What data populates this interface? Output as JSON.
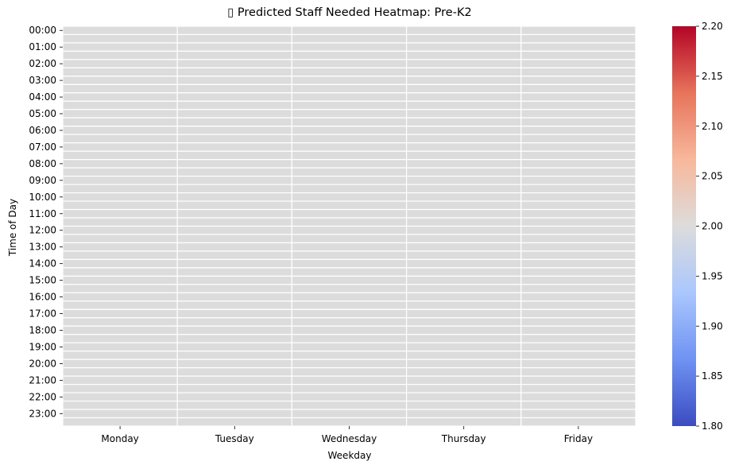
{
  "chart_data": {
    "type": "heatmap",
    "title": "▯ Predicted Staff Needed Heatmap: Pre-K2",
    "xlabel": "Weekday",
    "ylabel": "Time of Day",
    "x_categories": [
      "Monday",
      "Tuesday",
      "Wednesday",
      "Thursday",
      "Friday"
    ],
    "y_categories": [
      "00:00",
      "01:00",
      "02:00",
      "03:00",
      "04:00",
      "05:00",
      "06:00",
      "07:00",
      "08:00",
      "09:00",
      "10:00",
      "11:00",
      "12:00",
      "13:00",
      "14:00",
      "15:00",
      "16:00",
      "17:00",
      "18:00",
      "19:00",
      "20:00",
      "21:00",
      "22:00",
      "23:00"
    ],
    "rows_per_hour": 2,
    "cell_fill_color": "#dcdcdc",
    "cell_border_color": "#ffffff",
    "colorbar": {
      "colormap": "coolwarm",
      "min": 1.8,
      "max": 2.2,
      "ticks": [
        "1.80",
        "1.85",
        "1.90",
        "1.95",
        "2.00",
        "2.05",
        "2.10",
        "2.15",
        "2.20"
      ],
      "colors": [
        "#3b4cc0",
        "#6f92f3",
        "#aac7fd",
        "#dddcdc",
        "#f7b89c",
        "#e7745b",
        "#b40426"
      ]
    },
    "grid": false
  }
}
